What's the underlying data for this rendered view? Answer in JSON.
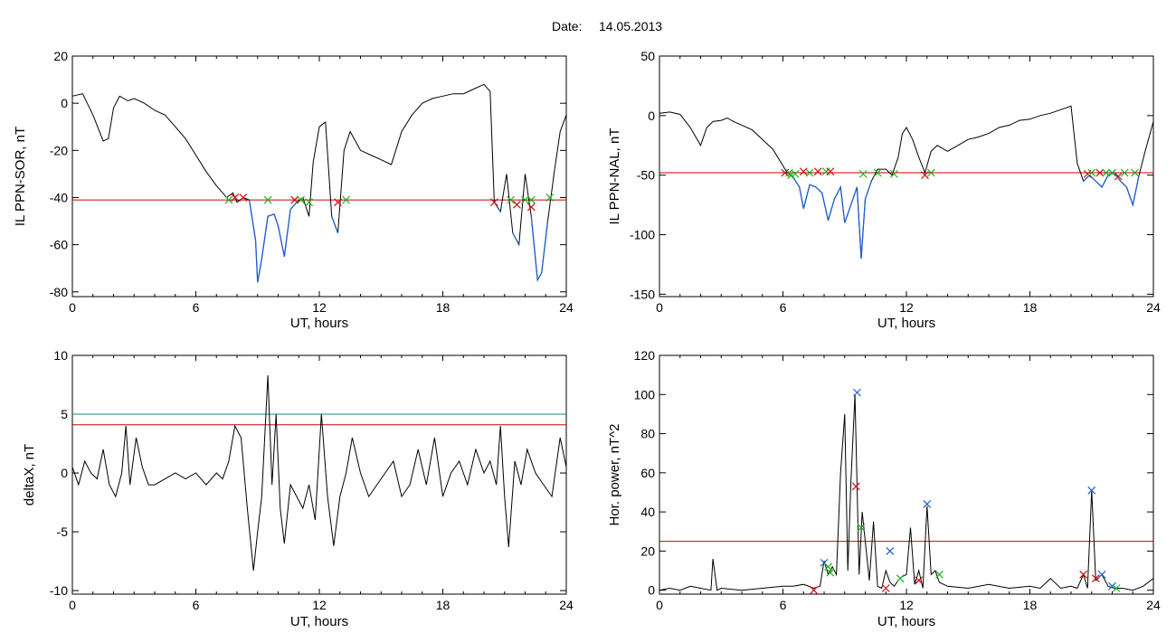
{
  "header": {
    "date_label": "Date:",
    "date_value": "14.05.2013"
  },
  "colors": {
    "trace": "#000000",
    "highlight": "#1f5fd0",
    "threshold_red": "#cc0000",
    "threshold_teal": "#1a8a8a",
    "mark_red": "#d01010",
    "mark_green": "#22b022",
    "mark_blue": "#1f5fd0"
  },
  "chart_data": [
    {
      "id": "p1",
      "type": "line",
      "xlabel": "UT, hours",
      "ylabel": "IL PPN-SOR, nT",
      "xlim": [
        0,
        24
      ],
      "ylim": [
        -82,
        20
      ],
      "xticks": [
        "0",
        "6",
        "12",
        "18",
        "24"
      ],
      "yticks": [
        {
          "v": 20,
          "label": "20"
        },
        {
          "v": 0,
          "label": "0"
        },
        {
          "v": -20,
          "label": "-20"
        },
        {
          "v": -40,
          "label": "-40"
        },
        {
          "v": -60,
          "label": "-60"
        },
        {
          "v": -80,
          "label": "-80"
        }
      ],
      "hlines": [
        {
          "y": -41,
          "color": "red"
        }
      ],
      "highlight_below": -41,
      "x": [
        0,
        0.5,
        1,
        1.5,
        1.75,
        2,
        2.3,
        2.7,
        3,
        3.5,
        4,
        4.5,
        5,
        5.5,
        6,
        6.5,
        7,
        7.5,
        7.8,
        8,
        8.3,
        8.6,
        8.9,
        9.0,
        9.2,
        9.5,
        9.8,
        10,
        10.3,
        10.6,
        10.9,
        11.2,
        11.5,
        11.7,
        12,
        12.3,
        12.6,
        12.9,
        13.2,
        13.5,
        14,
        14.5,
        15,
        15.5,
        16,
        16.5,
        17,
        17.5,
        18,
        18.5,
        19,
        19.5,
        20,
        20.3,
        20.5,
        20.8,
        21.1,
        21.4,
        21.7,
        22,
        22.3,
        22.6,
        22.8,
        23.1,
        23.4,
        23.7,
        24
      ],
      "y": [
        3,
        4,
        -5,
        -16,
        -15,
        -2,
        3,
        1,
        2,
        0,
        -3,
        -5,
        -10,
        -15,
        -22,
        -29,
        -35,
        -40,
        -38,
        -42,
        -40,
        -41,
        -58,
        -76,
        -66,
        -48,
        -47,
        -52,
        -65,
        -45,
        -42,
        -40,
        -48,
        -25,
        -10,
        -8,
        -48,
        -55,
        -20,
        -12,
        -20,
        -22,
        -24,
        -26,
        -12,
        -5,
        0,
        2,
        3,
        4,
        4,
        6,
        8,
        5,
        -42,
        -46,
        -30,
        -55,
        -60,
        -30,
        -48,
        -75,
        -72,
        -50,
        -30,
        -12,
        -5
      ],
      "marks": [
        {
          "x": 7.6,
          "y": -41,
          "c": "green"
        },
        {
          "x": 7.9,
          "y": -40,
          "c": "red"
        },
        {
          "x": 8.3,
          "y": -40,
          "c": "red"
        },
        {
          "x": 9.5,
          "y": -41,
          "c": "green"
        },
        {
          "x": 10.8,
          "y": -41,
          "c": "red"
        },
        {
          "x": 11.1,
          "y": -41,
          "c": "green"
        },
        {
          "x": 11.5,
          "y": -42,
          "c": "green"
        },
        {
          "x": 12.9,
          "y": -42,
          "c": "red"
        },
        {
          "x": 13.3,
          "y": -41,
          "c": "green"
        },
        {
          "x": 20.5,
          "y": -42,
          "c": "red"
        },
        {
          "x": 21.3,
          "y": -41,
          "c": "green"
        },
        {
          "x": 21.6,
          "y": -43,
          "c": "red"
        },
        {
          "x": 22.0,
          "y": -41,
          "c": "green"
        },
        {
          "x": 22.3,
          "y": -44,
          "c": "red"
        },
        {
          "x": 22.3,
          "y": -41,
          "c": "green"
        },
        {
          "x": 23.2,
          "y": -40,
          "c": "green"
        }
      ]
    },
    {
      "id": "p2",
      "type": "line",
      "xlabel": "UT, hours",
      "ylabel": "IL PPN-NAL, nT",
      "xlim": [
        0,
        24
      ],
      "ylim": [
        -152,
        50
      ],
      "xticks": [
        "0",
        "6",
        "12",
        "18",
        "24"
      ],
      "yticks": [
        {
          "v": 50,
          "label": "50"
        },
        {
          "v": 0,
          "label": "0"
        },
        {
          "v": -50,
          "label": "-50"
        },
        {
          "v": -100,
          "label": "-100"
        },
        {
          "v": -150,
          "label": "-150"
        }
      ],
      "hlines": [
        {
          "y": -48,
          "color": "red"
        }
      ],
      "highlight_below": -48,
      "x": [
        0,
        0.5,
        1,
        1.5,
        2,
        2.3,
        2.6,
        3,
        3.3,
        3.6,
        4,
        4.5,
        5,
        5.5,
        6,
        6.2,
        6.5,
        6.8,
        7,
        7.3,
        7.6,
        7.9,
        8.2,
        8.5,
        8.8,
        9,
        9.3,
        9.6,
        9.8,
        10,
        10.3,
        10.6,
        11,
        11.3,
        11.6,
        11.8,
        12,
        12.3,
        12.6,
        12.9,
        13.2,
        13.5,
        14,
        14.5,
        15,
        15.5,
        16,
        16.5,
        17,
        17.5,
        18,
        18.5,
        19,
        19.5,
        20,
        20.3,
        20.6,
        20.9,
        21.2,
        21.5,
        21.8,
        22.1,
        22.4,
        22.7,
        23,
        23.3,
        23.6,
        24
      ],
      "y": [
        2,
        3,
        1,
        -10,
        -25,
        -10,
        -5,
        -4,
        -2,
        -5,
        -8,
        -12,
        -20,
        -28,
        -42,
        -48,
        -52,
        -60,
        -78,
        -58,
        -60,
        -65,
        -88,
        -70,
        -60,
        -90,
        -75,
        -60,
        -120,
        -70,
        -55,
        -45,
        -45,
        -50,
        -35,
        -15,
        -10,
        -20,
        -35,
        -48,
        -30,
        -25,
        -30,
        -25,
        -20,
        -18,
        -15,
        -10,
        -8,
        -4,
        -3,
        0,
        2,
        5,
        8,
        -40,
        -55,
        -50,
        -55,
        -60,
        -50,
        -48,
        -55,
        -60,
        -75,
        -50,
        -30,
        -5
      ],
      "marks": [
        {
          "x": 6.1,
          "y": -48,
          "c": "red"
        },
        {
          "x": 6.3,
          "y": -48,
          "c": "green"
        },
        {
          "x": 6.4,
          "y": -50,
          "c": "green"
        },
        {
          "x": 6.6,
          "y": -49,
          "c": "green"
        },
        {
          "x": 7.0,
          "y": -47,
          "c": "red"
        },
        {
          "x": 7.3,
          "y": -48,
          "c": "green"
        },
        {
          "x": 7.7,
          "y": -47,
          "c": "red"
        },
        {
          "x": 8.1,
          "y": -47,
          "c": "green"
        },
        {
          "x": 8.3,
          "y": -47,
          "c": "red"
        },
        {
          "x": 9.9,
          "y": -49,
          "c": "green"
        },
        {
          "x": 10.6,
          "y": -48,
          "c": "green"
        },
        {
          "x": 11.4,
          "y": -49,
          "c": "green"
        },
        {
          "x": 12.9,
          "y": -50,
          "c": "red"
        },
        {
          "x": 13.2,
          "y": -48,
          "c": "green"
        },
        {
          "x": 20.8,
          "y": -49,
          "c": "red"
        },
        {
          "x": 21.0,
          "y": -48,
          "c": "green"
        },
        {
          "x": 21.4,
          "y": -48,
          "c": "red"
        },
        {
          "x": 21.7,
          "y": -48,
          "c": "green"
        },
        {
          "x": 22.0,
          "y": -48,
          "c": "green"
        },
        {
          "x": 22.3,
          "y": -51,
          "c": "red"
        },
        {
          "x": 22.6,
          "y": -48,
          "c": "green"
        },
        {
          "x": 23.1,
          "y": -48,
          "c": "green"
        }
      ]
    },
    {
      "id": "p3",
      "type": "line",
      "xlabel": "UT, hours",
      "ylabel": "deltaX, nT",
      "xlim": [
        0,
        24
      ],
      "ylim": [
        -10.3,
        10
      ],
      "xticks": [
        "0",
        "6",
        "12",
        "18",
        "24"
      ],
      "yticks": [
        {
          "v": 10,
          "label": "10"
        },
        {
          "v": 5,
          "label": "5"
        },
        {
          "v": 0,
          "label": "0"
        },
        {
          "v": -5,
          "label": "-5"
        },
        {
          "v": -10,
          "label": "-10"
        }
      ],
      "hlines": [
        {
          "y": 5.0,
          "color": "teal"
        },
        {
          "y": 4.1,
          "color": "red"
        }
      ],
      "highlight_below": null,
      "x": [
        0,
        0.3,
        0.6,
        0.9,
        1.2,
        1.5,
        1.8,
        2.1,
        2.4,
        2.6,
        2.8,
        3.1,
        3.4,
        3.7,
        4,
        4.5,
        5,
        5.5,
        6,
        6.5,
        7,
        7.3,
        7.6,
        7.9,
        8.2,
        8.5,
        8.8,
        9.0,
        9.2,
        9.5,
        9.7,
        9.9,
        10.1,
        10.3,
        10.6,
        10.9,
        11.2,
        11.5,
        11.8,
        12.1,
        12.4,
        12.7,
        13.0,
        13.3,
        13.6,
        14,
        14.4,
        14.8,
        15.2,
        15.6,
        16,
        16.4,
        16.8,
        17.2,
        17.6,
        18,
        18.4,
        18.8,
        19.2,
        19.6,
        20,
        20.3,
        20.6,
        20.8,
        21.0,
        21.2,
        21.5,
        21.8,
        22.1,
        22.5,
        22.9,
        23.3,
        23.7,
        24
      ],
      "y": [
        0.5,
        -1,
        1,
        0,
        -0.5,
        2,
        -1,
        -2,
        0,
        4,
        -1,
        3,
        0.5,
        -1,
        -1,
        -0.5,
        0,
        -0.5,
        0,
        -1,
        0,
        -0.5,
        1,
        4,
        3,
        -3,
        -8.3,
        -5,
        -2,
        8.3,
        -1,
        5,
        -3,
        -6,
        -1,
        -2,
        -3,
        -1,
        -4,
        5,
        -2,
        -6.2,
        -2,
        0,
        3,
        0,
        -2,
        -1,
        0,
        1,
        -2,
        -1,
        2,
        -1,
        3,
        -2,
        0,
        1,
        -1,
        2,
        0,
        1,
        -1,
        4,
        -2,
        -6.3,
        1,
        -1,
        2,
        0,
        -1,
        -2,
        3,
        0.5
      ]
    },
    {
      "id": "p4",
      "type": "line",
      "xlabel": "UT, hours",
      "ylabel": "Hor. power, nT^2",
      "xlim": [
        0,
        24
      ],
      "ylim": [
        -2,
        120
      ],
      "xticks": [
        "0",
        "6",
        "12",
        "18",
        "24"
      ],
      "yticks": [
        {
          "v": 120,
          "label": "120"
        },
        {
          "v": 100,
          "label": "100"
        },
        {
          "v": 80,
          "label": "80"
        },
        {
          "v": 60,
          "label": "60"
        },
        {
          "v": 40,
          "label": "40"
        },
        {
          "v": 20,
          "label": "20"
        },
        {
          "v": 0,
          "label": "0"
        }
      ],
      "hlines": [
        {
          "y": 25,
          "color": "red"
        }
      ],
      "highlight_below": null,
      "x": [
        0,
        0.5,
        1,
        1.5,
        2,
        2.5,
        2.6,
        2.8,
        3,
        4,
        5,
        6,
        6.5,
        7,
        7.5,
        7.8,
        8.0,
        8.2,
        8.4,
        8.6,
        8.8,
        9.0,
        9.15,
        9.3,
        9.5,
        9.7,
        9.85,
        10.0,
        10.2,
        10.4,
        10.6,
        10.8,
        11.0,
        11.2,
        11.4,
        11.6,
        11.8,
        12.0,
        12.2,
        12.4,
        12.6,
        12.8,
        13.0,
        13.2,
        13.4,
        13.6,
        14,
        15,
        16,
        17,
        18,
        18.5,
        19,
        19.5,
        20,
        20.3,
        20.6,
        20.8,
        21.0,
        21.2,
        21.5,
        21.8,
        22.1,
        22.5,
        23,
        23.5,
        24
      ],
      "y": [
        0,
        1,
        0,
        2,
        1,
        0,
        16,
        0,
        1,
        0,
        1,
        2,
        2,
        3,
        1,
        2,
        15,
        8,
        12,
        8,
        60,
        90,
        10,
        55,
        100,
        8,
        40,
        25,
        5,
        35,
        2,
        1,
        10,
        4,
        2,
        5,
        7,
        8,
        32,
        3,
        10,
        1,
        43,
        8,
        10,
        4,
        2,
        1,
        3,
        1,
        2,
        1,
        6,
        1,
        2,
        1,
        8,
        1,
        51,
        5,
        8,
        2,
        1,
        1,
        0,
        2,
        6
      ],
      "marks": [
        {
          "x": 7.5,
          "y": 0,
          "c": "red"
        },
        {
          "x": 8.0,
          "y": 14,
          "c": "blue"
        },
        {
          "x": 8.2,
          "y": 12,
          "c": "green"
        },
        {
          "x": 8.3,
          "y": 9,
          "c": "green"
        },
        {
          "x": 9.6,
          "y": 101,
          "c": "blue"
        },
        {
          "x": 9.55,
          "y": 53,
          "c": "red"
        },
        {
          "x": 9.8,
          "y": 32,
          "c": "green"
        },
        {
          "x": 11.2,
          "y": 20,
          "c": "blue"
        },
        {
          "x": 11.0,
          "y": 1,
          "c": "red"
        },
        {
          "x": 11.7,
          "y": 6,
          "c": "green"
        },
        {
          "x": 12.6,
          "y": 5,
          "c": "red"
        },
        {
          "x": 13.0,
          "y": 44,
          "c": "blue"
        },
        {
          "x": 13.6,
          "y": 8,
          "c": "green"
        },
        {
          "x": 20.6,
          "y": 8,
          "c": "red"
        },
        {
          "x": 21.0,
          "y": 51,
          "c": "blue"
        },
        {
          "x": 21.2,
          "y": 6,
          "c": "red"
        },
        {
          "x": 21.5,
          "y": 8,
          "c": "blue"
        },
        {
          "x": 22.0,
          "y": 2,
          "c": "blue"
        },
        {
          "x": 22.2,
          "y": 1,
          "c": "green"
        }
      ]
    }
  ]
}
